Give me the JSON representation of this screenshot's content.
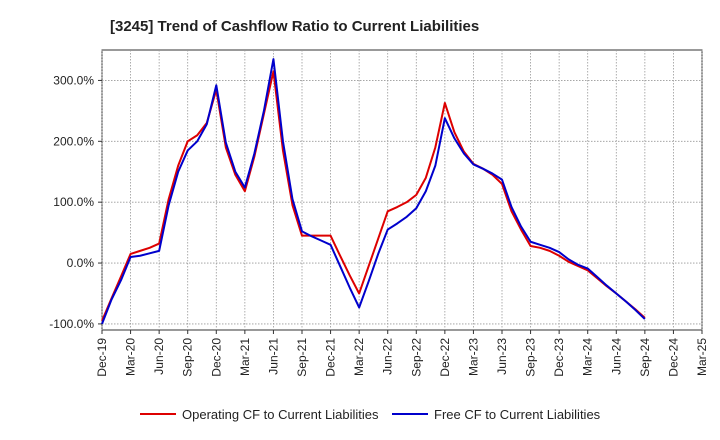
{
  "chart_data": {
    "type": "line",
    "title": "[3245]  Trend of Cashflow Ratio to Current Liabilities",
    "xlabel": "",
    "ylabel": "",
    "ylim": [
      -110,
      350
    ],
    "y_ticks": [
      -100,
      0,
      100,
      200,
      300
    ],
    "y_tick_labels": [
      "-100.0%",
      "0.0%",
      "100.0%",
      "200.0%",
      "300.0%"
    ],
    "x_range": [
      "Dec-19",
      "Mar-25"
    ],
    "x_tick_labels": [
      "Dec-19",
      "Mar-20",
      "Jun-20",
      "Sep-20",
      "Dec-20",
      "Mar-21",
      "Jun-21",
      "Sep-21",
      "Dec-21",
      "Mar-22",
      "Jun-22",
      "Sep-22",
      "Dec-22",
      "Mar-23",
      "Jun-23",
      "Sep-23",
      "Dec-23",
      "Mar-24",
      "Jun-24",
      "Sep-24",
      "Dec-24",
      "Mar-25"
    ],
    "grid": true,
    "legend_position": "bottom",
    "x": [
      "Dec-19",
      "Jan-20",
      "Feb-20",
      "Mar-20",
      "Apr-20",
      "May-20",
      "Jun-20",
      "Jul-20",
      "Aug-20",
      "Sep-20",
      "Oct-20",
      "Nov-20",
      "Dec-20",
      "Jan-21",
      "Feb-21",
      "Mar-21",
      "Apr-21",
      "May-21",
      "Jun-21",
      "Jul-21",
      "Aug-21",
      "Sep-21",
      "Oct-21",
      "Nov-21",
      "Dec-21",
      "Jan-22",
      "Feb-22",
      "Mar-22",
      "Apr-22",
      "May-22",
      "Jun-22",
      "Jul-22",
      "Aug-22",
      "Sep-22",
      "Oct-22",
      "Nov-22",
      "Dec-22",
      "Jan-23",
      "Feb-23",
      "Mar-23",
      "Apr-23",
      "May-23",
      "Jun-23",
      "Jul-23",
      "Aug-23",
      "Sep-23",
      "Oct-23",
      "Nov-23",
      "Dec-23",
      "Jan-24",
      "Feb-24",
      "Mar-24",
      "Apr-24",
      "May-24",
      "Jun-24",
      "Jul-24",
      "Aug-24",
      "Sep-24"
    ],
    "series": [
      {
        "name": "Operating CF to Current Liabilities",
        "color": "#dd0000",
        "values": [
          -95,
          -58,
          -22,
          15,
          20,
          25,
          32,
          105,
          160,
          200,
          210,
          230,
          285,
          190,
          145,
          118,
          175,
          245,
          315,
          185,
          95,
          45,
          45,
          45,
          45,
          12,
          -20,
          -50,
          -5,
          40,
          85,
          92,
          100,
          112,
          140,
          190,
          263,
          215,
          183,
          163,
          155,
          145,
          130,
          85,
          55,
          28,
          25,
          20,
          12,
          2,
          -5,
          -12,
          -25,
          -38,
          -50,
          -63,
          -76,
          -90
        ]
      },
      {
        "name": "Free CF to Current Liabilities",
        "color": "#0000cc",
        "values": [
          -100,
          -60,
          -28,
          10,
          12,
          16,
          20,
          95,
          150,
          185,
          200,
          228,
          292,
          198,
          150,
          124,
          180,
          250,
          335,
          200,
          105,
          52,
          44,
          37,
          30,
          -5,
          -40,
          -73,
          -30,
          15,
          55,
          65,
          76,
          90,
          118,
          160,
          238,
          205,
          180,
          162,
          155,
          147,
          137,
          92,
          60,
          35,
          30,
          25,
          18,
          6,
          -3,
          -9,
          -23,
          -37,
          -50,
          -63,
          -77,
          -92
        ]
      }
    ]
  }
}
